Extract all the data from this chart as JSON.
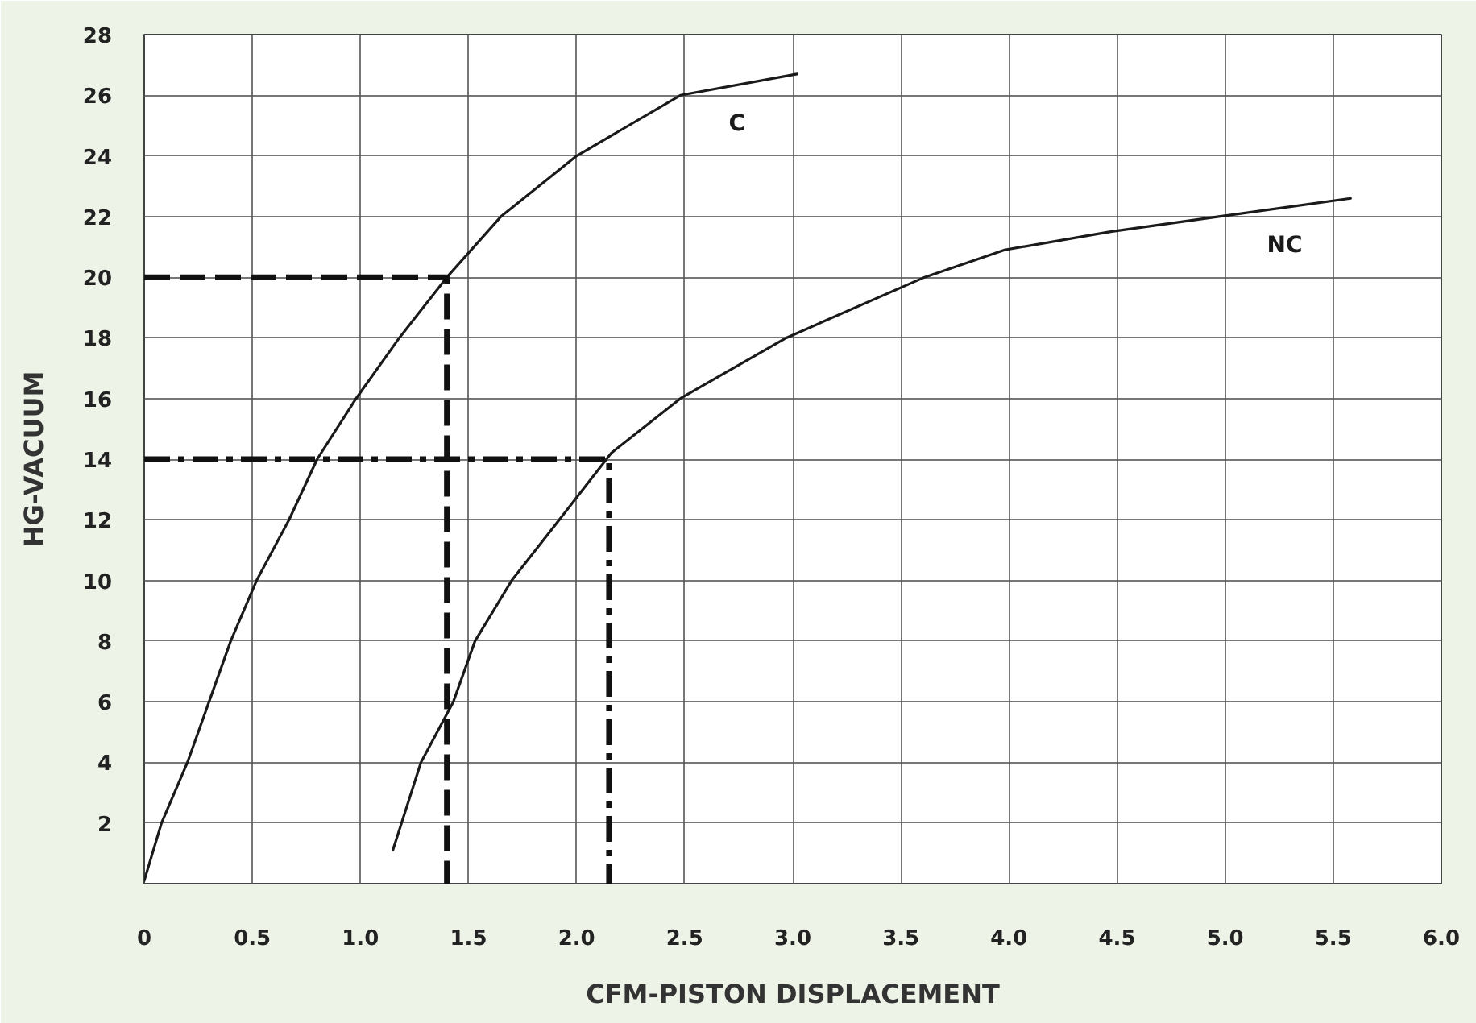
{
  "chart_data": {
    "type": "line",
    "xlabel": "CFM-PISTON DISPLACEMENT",
    "ylabel": "HG-VACUUM",
    "xlim": [
      0,
      6.0
    ],
    "xticks": [
      {
        "value": 0,
        "label": "0"
      },
      0.5,
      {
        "value": 1,
        "label": "1.0"
      },
      1.5,
      {
        "value": 2,
        "label": "2.0"
      },
      2.5,
      {
        "value": 3,
        "label": "3.0"
      },
      3.5,
      {
        "value": 4,
        "label": "4.0"
      },
      4.5,
      {
        "value": 5,
        "label": "5.0"
      },
      5.5,
      {
        "value": 6,
        "label": "6.0"
      }
    ],
    "ylim": [
      0,
      28
    ],
    "yticks": [
      2,
      4,
      6,
      8,
      10,
      12,
      14,
      16,
      18,
      20,
      22,
      24,
      26,
      28
    ],
    "grid": true,
    "marker": "none",
    "line_style": "solid",
    "series": [
      {
        "name": "C",
        "color": "#1a1a1a",
        "x": [
          0,
          0.08,
          0.2,
          0.3,
          0.4,
          0.52,
          0.67,
          0.8,
          0.98,
          1.18,
          1.4,
          1.65,
          2.0,
          2.48,
          3.02
        ],
        "values": [
          0.1,
          2,
          4,
          6,
          8,
          10,
          12,
          14,
          16,
          18,
          20,
          22,
          24,
          26,
          26.7
        ]
      },
      {
        "name": "NC",
        "color": "#1a1a1a",
        "x": [
          1.15,
          1.28,
          1.43,
          1.53,
          1.7,
          1.92,
          2.16,
          2.48,
          2.97,
          3.61,
          3.98,
          4.47,
          4.97,
          5.58
        ],
        "values": [
          1.1,
          4,
          6,
          8,
          10,
          12,
          14.2,
          16,
          18,
          20,
          20.9,
          21.5,
          22.0,
          22.6
        ]
      },
      {
        "type": "line",
        "line_style": "dashed",
        "color": "#111111",
        "x": [
          0,
          1.4,
          1.4
        ],
        "values": [
          20,
          20,
          0
        ]
      },
      {
        "type": "line",
        "line_style": "dotted",
        "color": "#111111",
        "x": [
          0,
          2.15,
          2.15
        ],
        "values": [
          14,
          14,
          0
        ]
      }
    ]
  }
}
